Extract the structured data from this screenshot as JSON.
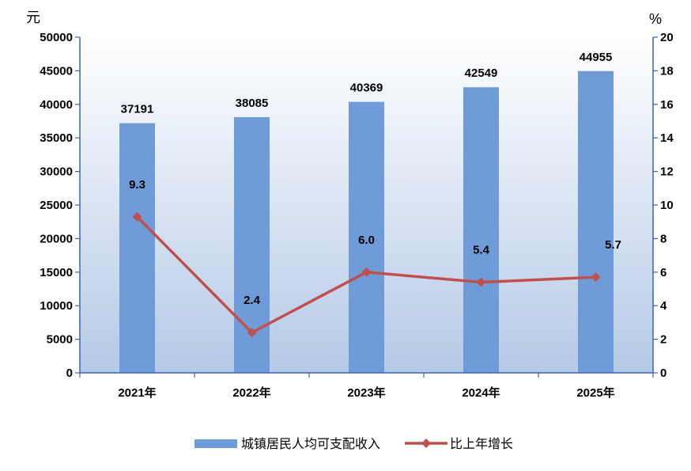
{
  "chart_data": {
    "type": "bar+line",
    "categories": [
      "2021年",
      "2022年",
      "2023年",
      "2024年",
      "2025年"
    ],
    "series": [
      {
        "name": "城镇居民人均可支配收入",
        "type": "bar",
        "axis": "left",
        "values": [
          37191,
          38085,
          40369,
          42549,
          44955
        ],
        "labels": [
          "37191",
          "38085",
          "40369",
          "42549",
          "44955"
        ],
        "color": "#6f9cd8"
      },
      {
        "name": "比上年增长",
        "type": "line",
        "axis": "right",
        "values": [
          9.3,
          2.4,
          6.0,
          5.4,
          5.7
        ],
        "labels": [
          "9.3",
          "2.4",
          "6.0",
          "5.4",
          "5.7"
        ],
        "color": "#c0504d"
      }
    ],
    "y_left": {
      "unit": "元",
      "ylim": [
        0,
        50000
      ],
      "ticks": [
        "0",
        "5000",
        "10000",
        "15000",
        "20000",
        "25000",
        "30000",
        "35000",
        "40000",
        "45000",
        "50000"
      ]
    },
    "y_right": {
      "unit": "%",
      "ylim": [
        0,
        20
      ],
      "ticks": [
        "0",
        "2",
        "4",
        "6",
        "8",
        "10",
        "12",
        "14",
        "16",
        "18",
        "20"
      ]
    },
    "legend_position": "bottom",
    "grid": false,
    "plot_background": "#dbe7f7"
  }
}
